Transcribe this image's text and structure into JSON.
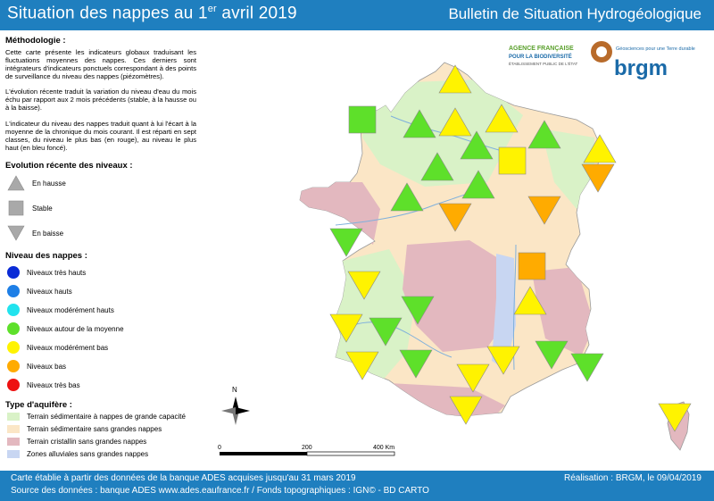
{
  "header": {
    "title_prefix": "Situation des nappes au 1",
    "title_sup": "er",
    "title_suffix": " avril 2019",
    "bulletin": "Bulletin de Situation Hydrogéologique"
  },
  "methodology": {
    "heading": "Méthodologie :",
    "p1": "Cette carte présente les indicateurs globaux traduisant les fluctuations moyennes des nappes. Ces derniers sont intégrateurs d'indicateurs ponctuels correspondant à des points de surveillance du niveau des nappes (piézomètres).",
    "p2": "L'évolution récente traduit la variation du niveau d'eau du mois échu par rapport aux 2 mois précédents (stable, à la hausse ou à la baisse).",
    "p3": "L'indicateur du niveau des nappes traduit quant à lui l'écart à la moyenne de la chronique du mois courant. Il est réparti en sept classes, du niveau le plus bas (en rouge), au niveau le plus haut (en bleu foncé)."
  },
  "evolution": {
    "heading": "Evolution récente des niveaux :",
    "items": [
      "En hausse",
      "Stable",
      "En baisse"
    ]
  },
  "levels": {
    "heading": "Niveau des nappes :",
    "items": [
      {
        "label": "Niveaux très hauts",
        "color": "#0a2bd6"
      },
      {
        "label": "Niveaux hauts",
        "color": "#1e7fe6"
      },
      {
        "label": "Niveaux modérément hauts",
        "color": "#22e3ee"
      },
      {
        "label": "Niveaux autour de la moyenne",
        "color": "#5ee02a"
      },
      {
        "label": "Niveaux modérément bas",
        "color": "#fff300"
      },
      {
        "label": "Niveaux bas",
        "color": "#ffab00"
      },
      {
        "label": "Niveaux très bas",
        "color": "#ee1111"
      }
    ]
  },
  "aquifer": {
    "heading": "Type d'aquifère :",
    "items": [
      {
        "label": "Terrain sédimentaire à nappes de grande capacité",
        "color": "#d9f2c7"
      },
      {
        "label": "Terrain sédimentaire sans grandes nappes",
        "color": "#fbe6c6"
      },
      {
        "label": "Terrain cristallin sans grandes nappes",
        "color": "#e3b8bf"
      },
      {
        "label": "Zones alluviales sans grandes nappes",
        "color": "#c8d6f2"
      }
    ]
  },
  "logos": {
    "afb_line1": "AGENCE FRANÇAISE",
    "afb_line2": "POUR LA BIODIVERSITÉ",
    "afb_line3": "ÉTABLISSEMENT PUBLIC DE L'ÉTAT",
    "brgm_tagline": "Géosciences pour une Terre durable",
    "brgm_name": "brgm"
  },
  "map": {
    "compass": "N",
    "scale_ticks": [
      "0",
      "200",
      "400 Km"
    ],
    "markers": [
      {
        "id": "m1",
        "trend": "up",
        "level": "moderately_low"
      },
      {
        "id": "m2",
        "trend": "stable",
        "level": "average"
      },
      {
        "id": "m3",
        "trend": "up",
        "level": "average"
      },
      {
        "id": "m4",
        "trend": "up",
        "level": "moderately_low"
      },
      {
        "id": "m5",
        "trend": "up",
        "level": "moderately_low"
      },
      {
        "id": "m6",
        "trend": "up",
        "level": "average"
      },
      {
        "id": "m7",
        "trend": "up",
        "level": "average"
      },
      {
        "id": "m8",
        "trend": "stable",
        "level": "moderately_low"
      },
      {
        "id": "m9",
        "trend": "up",
        "level": "moderately_low"
      },
      {
        "id": "m10",
        "trend": "down",
        "level": "low"
      },
      {
        "id": "m11",
        "trend": "up",
        "level": "average"
      },
      {
        "id": "m12",
        "trend": "up",
        "level": "average"
      },
      {
        "id": "m13",
        "trend": "up",
        "level": "average"
      },
      {
        "id": "m14",
        "trend": "down",
        "level": "low"
      },
      {
        "id": "m15",
        "trend": "down",
        "level": "low"
      },
      {
        "id": "m16",
        "trend": "down",
        "level": "average"
      },
      {
        "id": "m17",
        "trend": "stable",
        "level": "low"
      },
      {
        "id": "m18",
        "trend": "down",
        "level": "moderately_low"
      },
      {
        "id": "m19",
        "trend": "up",
        "level": "moderately_low"
      },
      {
        "id": "m20",
        "trend": "down",
        "level": "average"
      },
      {
        "id": "m21",
        "trend": "down",
        "level": "moderately_low"
      },
      {
        "id": "m22",
        "trend": "down",
        "level": "average"
      },
      {
        "id": "m23",
        "trend": "down",
        "level": "moderately_low"
      },
      {
        "id": "m24",
        "trend": "down",
        "level": "average"
      },
      {
        "id": "m25",
        "trend": "down",
        "level": "moderately_low"
      },
      {
        "id": "m26",
        "trend": "down",
        "level": "moderately_low"
      },
      {
        "id": "m27",
        "trend": "down",
        "level": "average"
      },
      {
        "id": "m28",
        "trend": "down",
        "level": "average"
      },
      {
        "id": "m29",
        "trend": "down",
        "level": "moderately_low"
      },
      {
        "id": "m30",
        "trend": "down",
        "level": "moderately_low"
      }
    ]
  },
  "footer": {
    "line1": "Carte établie à partir des données de la banque ADES acquises jusqu'au 31 mars 2019",
    "line2": "Source des données : banque ADES www.ades.eaufrance.fr / Fonds topographiques : IGN© - BD CARTO",
    "credit": "Réalisation : BRGM, le 09/04/2019"
  }
}
